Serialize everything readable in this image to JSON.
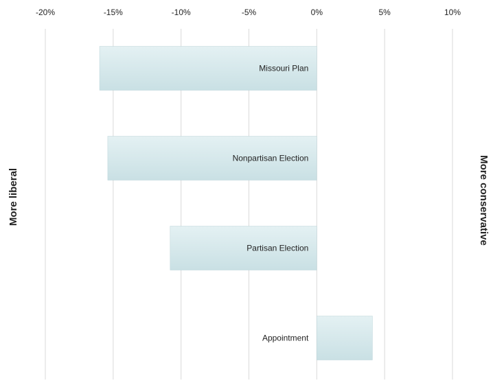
{
  "chart_data": {
    "type": "bar",
    "orientation": "horizontal",
    "categories": [
      "Missouri Plan",
      "Nonpartisan Election",
      "Partisan Election",
      "Appointment"
    ],
    "values": [
      -16,
      -15.4,
      -10.8,
      4.1
    ],
    "unit": "%",
    "xlim": [
      -20,
      10
    ],
    "xticks": [
      -20,
      -15,
      -10,
      -5,
      0,
      5,
      10
    ],
    "xtick_labels": [
      "-20%",
      "-15%",
      "-10%",
      "-5%",
      "0%",
      "5%",
      "10%"
    ],
    "x_axis_position": "top",
    "grid": true,
    "left_label": "More liberal",
    "right_label": "More conservative",
    "colors": {
      "bar_top": "#e4f1f3",
      "bar_bottom": "#c9e0e4",
      "bar_stroke": "#b9d3d8",
      "grid": "#d9d9d9",
      "text": "#222222"
    }
  }
}
